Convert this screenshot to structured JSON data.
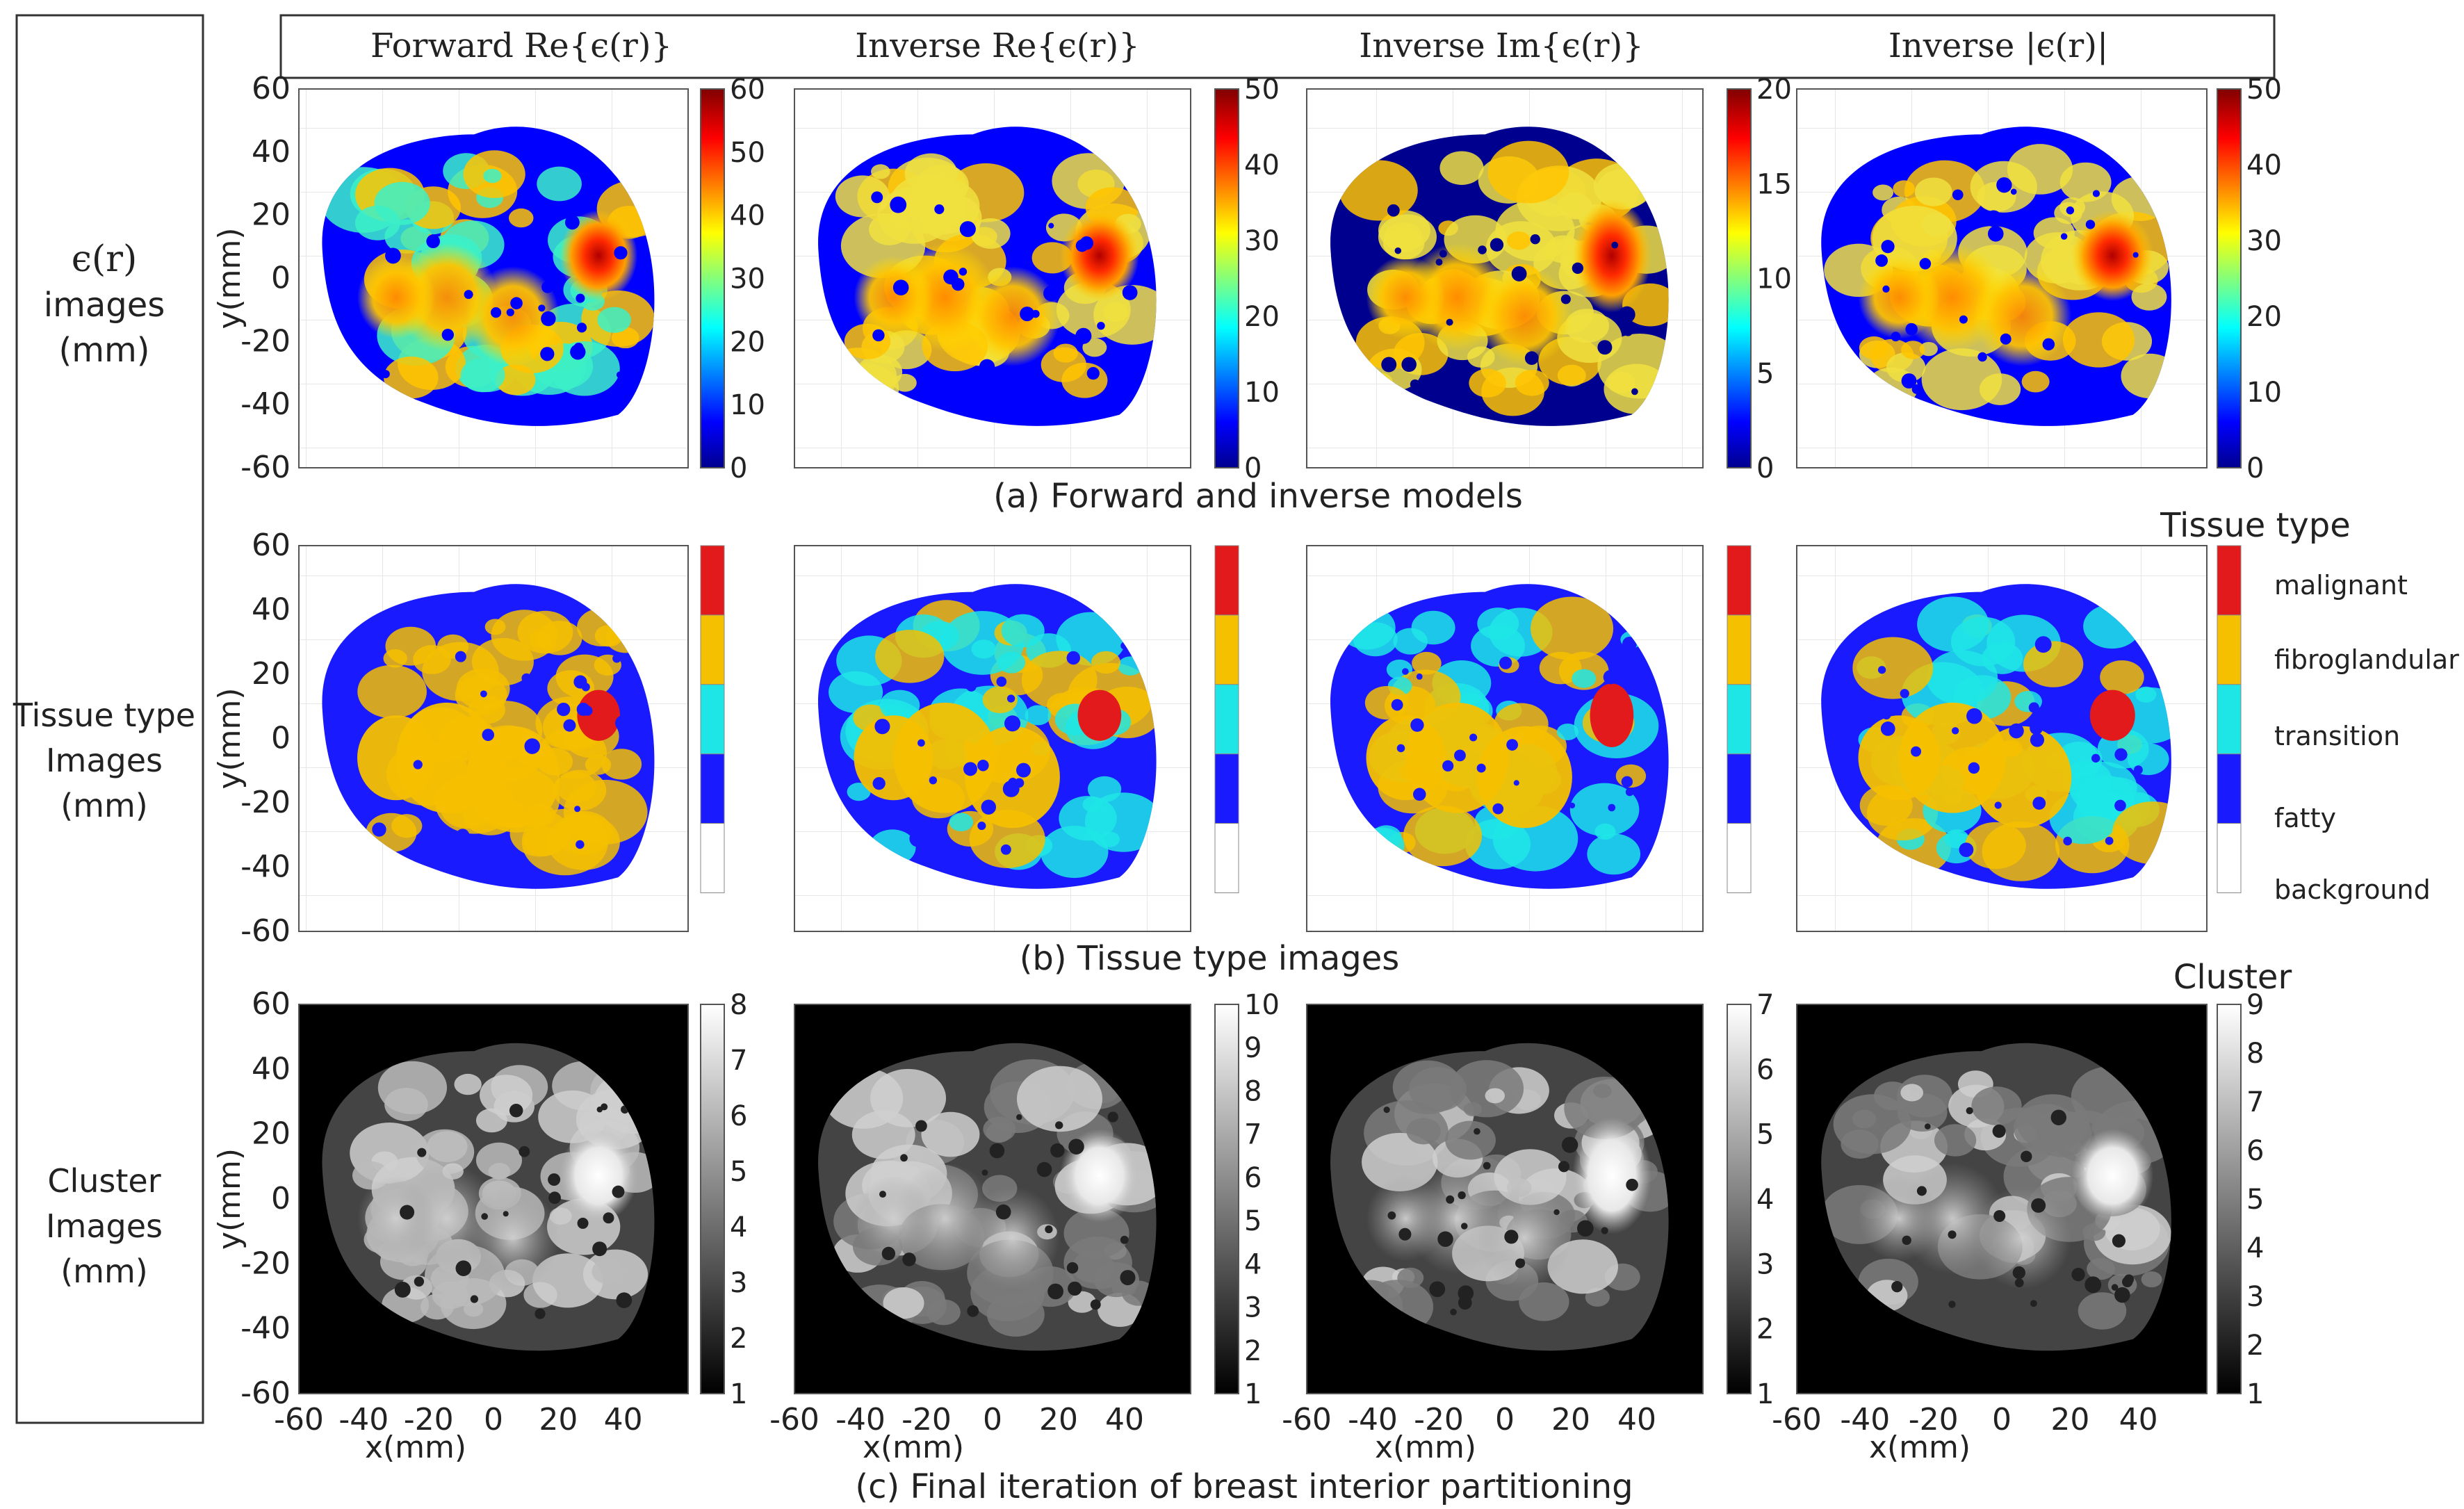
{
  "row_labels": {
    "row1": {
      "line1": "ϵ(r)",
      "line2": "images",
      "line3": "(mm)"
    },
    "row2": {
      "line1": "Tissue type",
      "line2": "Images",
      "line3": "(mm)"
    },
    "row3": {
      "line1": "Cluster",
      "line2": "Images",
      "line3": "(mm)"
    }
  },
  "column_headers": [
    "Forward Re{ϵ(r)}",
    "Inverse Re{ϵ(r)}",
    "Inverse Im{ϵ(r)}",
    "Inverse |ϵ(r)|"
  ],
  "captions": {
    "a": "(a) Forward and inverse models",
    "b": "(b) Tissue type images",
    "c": "(c) Final iteration of breast interior partitioning"
  },
  "axes": {
    "y_label": "y(mm)",
    "x_label": "x(mm)",
    "y_ticks": [
      "60",
      "40",
      "20",
      "0",
      "-20",
      "-40",
      "-60"
    ],
    "x_ticks": [
      "-60",
      "-40",
      "-20",
      "0",
      "20",
      "40"
    ]
  },
  "colorbars": {
    "row1": [
      [
        "60",
        "50",
        "40",
        "30",
        "20",
        "10",
        "0"
      ],
      [
        "50",
        "40",
        "30",
        "20",
        "10",
        "0"
      ],
      [
        "20",
        "15",
        "10",
        "5",
        "0"
      ],
      [
        "50",
        "40",
        "30",
        "20",
        "10",
        "0"
      ]
    ],
    "row3": [
      [
        "8",
        "7",
        "6",
        "5",
        "4",
        "3",
        "2",
        "1"
      ],
      [
        "10",
        "9",
        "8",
        "7",
        "6",
        "5",
        "4",
        "3",
        "2",
        "1"
      ],
      [
        "7",
        "6",
        "5",
        "4",
        "3",
        "2",
        "1"
      ],
      [
        "9",
        "8",
        "7",
        "6",
        "5",
        "4",
        "3",
        "2",
        "1"
      ]
    ]
  },
  "legend": {
    "title": "Tissue type",
    "items": [
      {
        "label": "malignant",
        "color": "#e31a1c"
      },
      {
        "label": "fibroglandular",
        "color": "#f5c000"
      },
      {
        "label": "transition",
        "color": "#1ee6e6"
      },
      {
        "label": "fatty",
        "color": "#1a1aff"
      },
      {
        "label": "background",
        "color": "#ffffff"
      }
    ]
  },
  "cluster_title": "Cluster",
  "colors": {
    "jet": [
      "#00008f",
      "#0000ff",
      "#00ffff",
      "#ffff00",
      "#ff0000",
      "#800000"
    ],
    "tissue_fatty": "#1a1aff",
    "tissue_transition": "#1ee6e6",
    "tissue_fibroglandular": "#f5c000",
    "tissue_malignant": "#e31a1c"
  }
}
